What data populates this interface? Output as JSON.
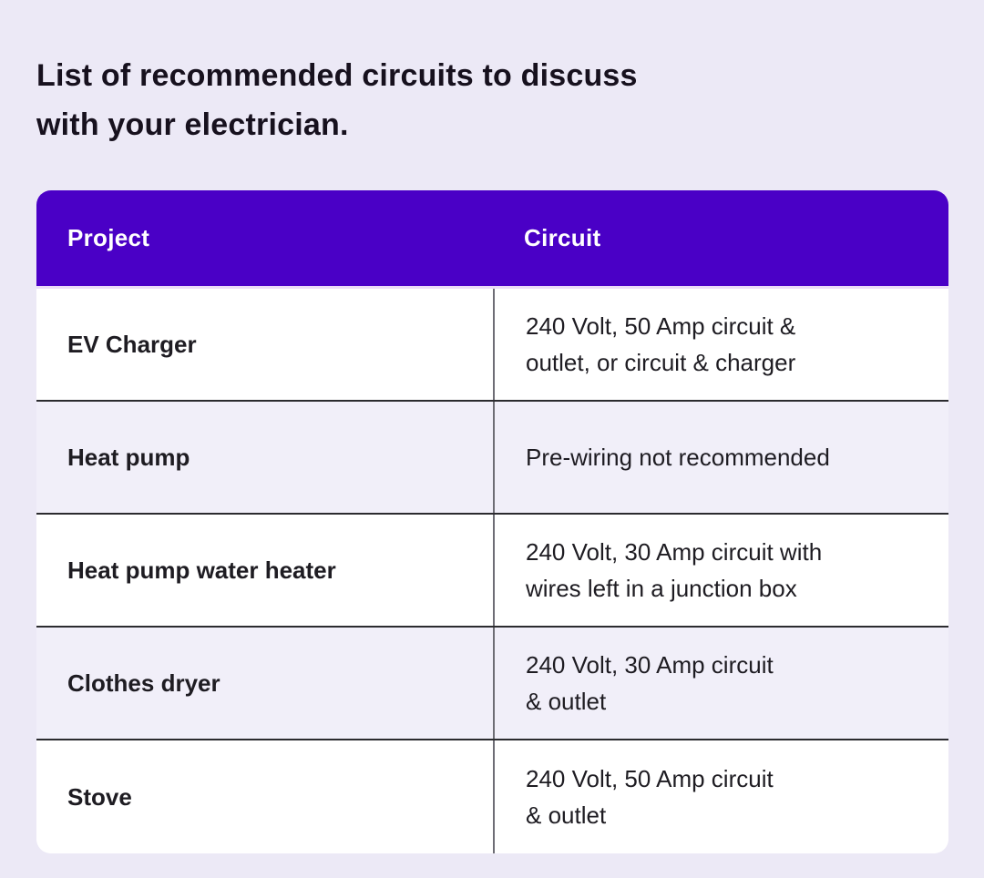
{
  "header": {
    "title": "List of recommended circuits to discuss\nwith your electrician."
  },
  "colors": {
    "page_background": "#ECE9F6",
    "table_header_background": "#4A00C6",
    "table_header_text": "#FFFFFF",
    "row_alt_background": "#F1EFF9",
    "row_plain_background": "#FFFFFF",
    "row_separator": "#2B2B2F",
    "column_divider": "#6E6D75",
    "title_text": "#17111E",
    "cell_text": "#1E1C22"
  },
  "table": {
    "columns": {
      "project": "Project",
      "circuit": "Circuit"
    },
    "rows": [
      {
        "project": "EV Charger",
        "circuit": "240 Volt, 50 Amp circuit &\noutlet, or circuit & charger"
      },
      {
        "project": "Heat pump",
        "circuit": "Pre-wiring not recommended"
      },
      {
        "project": "Heat pump water heater",
        "circuit": "240 Volt, 30 Amp circuit with\nwires left in a junction box"
      },
      {
        "project": "Clothes dryer",
        "circuit": "240 Volt, 30 Amp circuit\n& outlet"
      },
      {
        "project": "Stove",
        "circuit": "240 Volt, 50 Amp circuit\n& outlet"
      }
    ]
  }
}
